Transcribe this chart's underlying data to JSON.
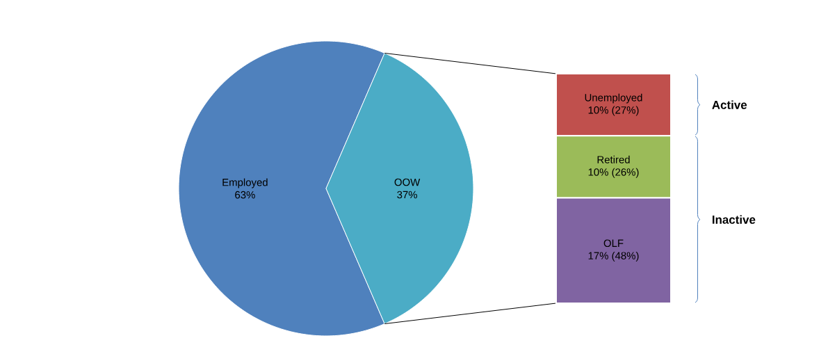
{
  "chart_data": [
    {
      "type": "pie",
      "categories": [
        "Employed",
        "OOW"
      ],
      "values": [
        63,
        37
      ],
      "colors": [
        "#4f81bd",
        "#4bacc6"
      ],
      "value_labels": [
        "63%",
        "37%"
      ]
    },
    {
      "type": "bar",
      "stacked": true,
      "categories": [
        null
      ],
      "series": [
        {
          "name": "OLF",
          "color": "#8064a2",
          "values": [
            17
          ],
          "value_labels": [
            "17% (48%)"
          ]
        },
        {
          "name": "Retired",
          "color": "#9bbb59",
          "values": [
            10
          ],
          "value_labels": [
            "10% (26%)"
          ]
        },
        {
          "name": "Unemployed",
          "color": "#c0504d",
          "values": [
            10
          ],
          "value_labels": [
            "10% (27%)"
          ]
        }
      ],
      "annotations": [
        "Active",
        "Inactive"
      ]
    }
  ]
}
